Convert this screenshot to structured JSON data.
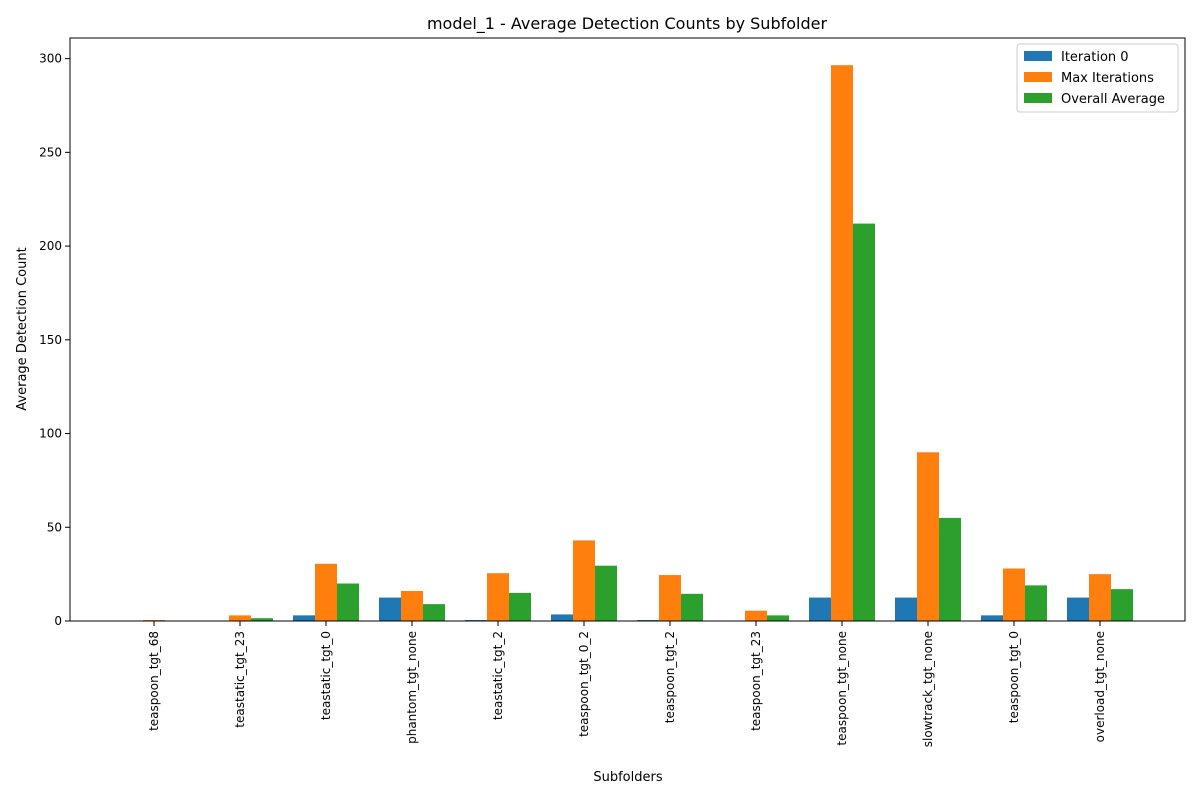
{
  "chart_data": {
    "type": "bar",
    "title": "model_1 - Average Detection Counts by Subfolder",
    "xlabel": "Subfolders",
    "ylabel": "Average Detection Count",
    "ylim": [
      0,
      311
    ],
    "yticks": [
      0,
      50,
      100,
      150,
      200,
      250,
      300
    ],
    "grid": false,
    "legend_position": "top-right",
    "categories": [
      "teaspoon_tgt_68",
      "teastatic_tgt_23",
      "teastatic_tgt_0",
      "phantom_tgt_none",
      "teastatic_tgt_2",
      "teaspoon_tgt_0_2",
      "teaspoon_tgt_2",
      "teaspoon_tgt_23",
      "teaspoon_tgt_none",
      "slowtrack_tgt_none",
      "teaspoon_tgt_0",
      "overload_tgt_none"
    ],
    "series": [
      {
        "name": "Iteration 0",
        "color": "#1f77b4",
        "values": [
          0,
          0,
          3,
          12.5,
          0.5,
          3.5,
          0.5,
          0,
          12.5,
          12.5,
          3,
          12.5
        ]
      },
      {
        "name": "Max Iterations",
        "color": "#ff7f0e",
        "values": [
          0.5,
          3,
          30.5,
          16,
          25.5,
          43,
          24.5,
          5.5,
          296.5,
          90,
          28,
          25
        ]
      },
      {
        "name": "Overall Average",
        "color": "#2ca02c",
        "values": [
          0.2,
          1.5,
          20,
          9,
          15,
          29.5,
          14.5,
          3,
          212,
          55,
          19,
          17
        ]
      }
    ]
  }
}
